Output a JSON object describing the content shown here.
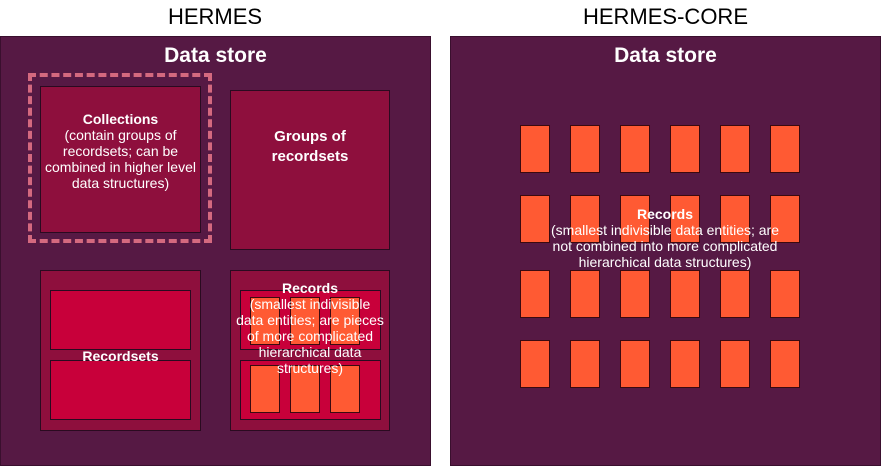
{
  "left": {
    "title": "HERMES",
    "store": "Data store",
    "collections": {
      "heading": "Collections",
      "body": "(contain groups of recordsets; can be combined in higher level data structures)"
    },
    "groups": {
      "heading": "Groups of recordsets"
    },
    "recordsets": {
      "heading": "Recordsets"
    },
    "records": {
      "heading": "Records",
      "body": "(smallest indivisible data entities; are pieces of more complicated hierarchical data structures)"
    }
  },
  "right": {
    "title": "HERMES-CORE",
    "store": "Data store",
    "records": {
      "heading": "Records",
      "body": "(smallest indivisible data entities; are not combined into more complicated hierarchical data structures)"
    }
  },
  "colors": {
    "panel": "#561944",
    "collection": "#8e0f3d",
    "recordset": "#c8003a",
    "record": "#ff5a33",
    "dashed_outline": "#d4697f"
  }
}
